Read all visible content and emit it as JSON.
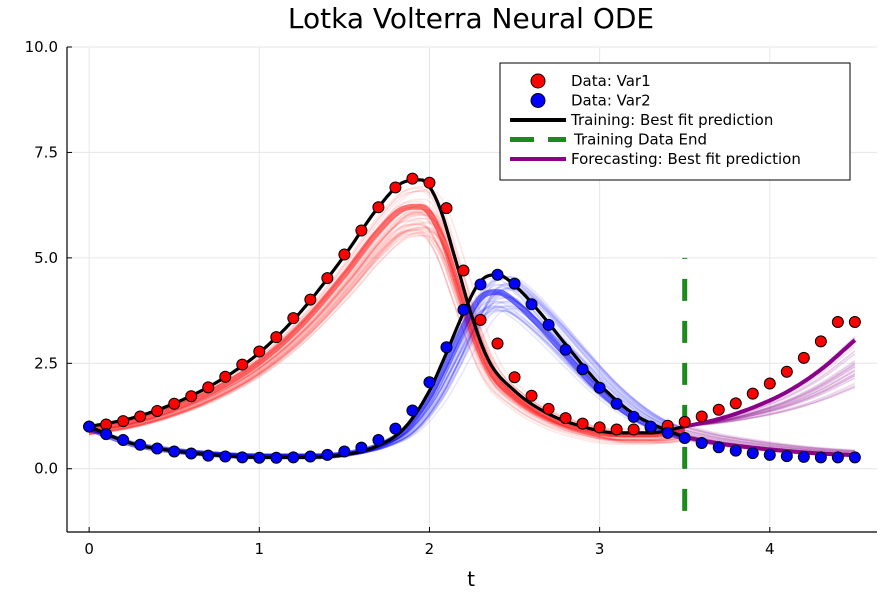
{
  "chart_data": {
    "type": "line",
    "title": "Lotka Volterra Neural ODE",
    "xlabel": "t",
    "ylabel": "",
    "xlim": [
      -0.13,
      4.63
    ],
    "ylim": [
      -1.5,
      10.0
    ],
    "xticks": [
      0,
      1,
      2,
      3,
      4
    ],
    "xtick_labels": [
      "0",
      "1",
      "2",
      "3",
      "4"
    ],
    "yticks": [
      0.0,
      2.5,
      5.0,
      7.5,
      10.0
    ],
    "ytick_labels": [
      "0.0",
      "2.5",
      "5.0",
      "7.5",
      "10.0"
    ],
    "grid": true,
    "legend_position": "top-right",
    "legend": [
      {
        "label": "Data: Var1",
        "marker": "circle",
        "color": "#ff0000"
      },
      {
        "label": "Data: Var2",
        "marker": "circle",
        "color": "#0000ff"
      },
      {
        "label": "Training: Best fit prediction",
        "marker": "line",
        "color": "#000000"
      },
      {
        "label": "Training Data End",
        "marker": "dash",
        "color": "#1e8a1e"
      },
      {
        "label": "Forecasting: Best fit prediction",
        "marker": "line",
        "color": "#8b008b"
      }
    ],
    "training_end_x": 3.5,
    "training_end_line": {
      "y_from": -1.0,
      "y_to": 5.0
    },
    "data_var1": {
      "x": [
        0,
        0.1,
        0.2,
        0.3,
        0.4,
        0.5,
        0.6,
        0.7,
        0.8,
        0.9,
        1.0,
        1.1,
        1.2,
        1.3,
        1.4,
        1.5,
        1.6,
        1.7,
        1.8,
        1.9,
        2.0,
        2.1,
        2.2,
        2.3,
        2.4,
        2.5,
        2.6,
        2.7,
        2.8,
        2.9,
        3.0,
        3.1,
        3.2,
        3.3,
        3.4,
        3.5,
        3.6,
        3.7,
        3.8,
        3.9,
        4.0,
        4.1,
        4.2,
        4.3,
        4.4,
        4.5
      ],
      "y": [
        1.0,
        1.05,
        1.13,
        1.24,
        1.37,
        1.54,
        1.72,
        1.93,
        2.18,
        2.47,
        2.78,
        3.12,
        3.57,
        4.01,
        4.52,
        5.08,
        5.65,
        6.2,
        6.67,
        6.88,
        6.78,
        6.18,
        4.7,
        3.53,
        2.97,
        2.17,
        1.73,
        1.42,
        1.2,
        1.07,
        0.98,
        0.93,
        0.93,
        0.97,
        1.02,
        1.11,
        1.24,
        1.4,
        1.55,
        1.78,
        2.02,
        2.3,
        2.63,
        3.02,
        3.48,
        3.48
      ]
    },
    "data_var2": {
      "x": [
        0,
        0.1,
        0.2,
        0.3,
        0.4,
        0.5,
        0.6,
        0.7,
        0.8,
        0.9,
        1.0,
        1.1,
        1.2,
        1.3,
        1.4,
        1.5,
        1.6,
        1.7,
        1.8,
        1.9,
        2.0,
        2.1,
        2.2,
        2.3,
        2.4,
        2.5,
        2.6,
        2.7,
        2.8,
        2.9,
        3.0,
        3.1,
        3.2,
        3.3,
        3.4,
        3.5,
        3.6,
        3.7,
        3.8,
        3.9,
        4.0,
        4.1,
        4.2,
        4.3,
        4.4,
        4.5
      ],
      "y": [
        1.0,
        0.82,
        0.68,
        0.57,
        0.48,
        0.41,
        0.36,
        0.31,
        0.29,
        0.27,
        0.26,
        0.26,
        0.27,
        0.29,
        0.33,
        0.41,
        0.5,
        0.68,
        0.95,
        1.38,
        2.05,
        2.88,
        3.77,
        4.37,
        4.6,
        4.39,
        3.9,
        3.41,
        2.82,
        2.36,
        1.92,
        1.54,
        1.23,
        1.0,
        0.85,
        0.73,
        0.61,
        0.51,
        0.43,
        0.37,
        0.33,
        0.3,
        0.28,
        0.27,
        0.27,
        0.27
      ]
    },
    "best_fit_var1": {
      "x": [
        0,
        0.25,
        0.5,
        0.75,
        1.0,
        1.25,
        1.5,
        1.7,
        1.85,
        1.95,
        2.05,
        2.15,
        2.25,
        2.35,
        2.5,
        2.7,
        2.9,
        3.1,
        3.3,
        3.5
      ],
      "y": [
        1.0,
        1.2,
        1.55,
        2.05,
        2.75,
        3.75,
        5.05,
        6.2,
        6.8,
        6.85,
        6.3,
        5.0,
        3.6,
        2.55,
        1.85,
        1.3,
        1.0,
        0.85,
        0.85,
        1.0
      ]
    },
    "best_fit_var2": {
      "x": [
        0,
        0.25,
        0.5,
        0.75,
        1.0,
        1.25,
        1.5,
        1.7,
        1.85,
        2.0,
        2.1,
        2.2,
        2.3,
        2.4,
        2.5,
        2.65,
        2.8,
        3.0,
        3.2,
        3.4,
        3.5
      ],
      "y": [
        1.0,
        0.6,
        0.42,
        0.32,
        0.27,
        0.27,
        0.33,
        0.55,
        0.95,
        1.85,
        2.75,
        3.7,
        4.45,
        4.6,
        4.35,
        3.7,
        2.95,
        2.0,
        1.3,
        0.9,
        0.75
      ]
    },
    "forecast_var1": {
      "x": [
        3.5,
        3.7,
        3.9,
        4.1,
        4.3,
        4.5
      ],
      "y": [
        1.0,
        1.18,
        1.45,
        1.82,
        2.35,
        3.05
      ]
    },
    "forecast_var2": {
      "x": [
        3.5,
        3.7,
        3.9,
        4.1,
        4.3,
        4.5
      ],
      "y": [
        0.75,
        0.6,
        0.5,
        0.42,
        0.36,
        0.32
      ]
    },
    "ensemble": {
      "count": 40,
      "var1_color": "#ff0000",
      "var2_color": "#0000ff",
      "forecast_color": "#8b008b",
      "opacity": 0.1
    }
  }
}
